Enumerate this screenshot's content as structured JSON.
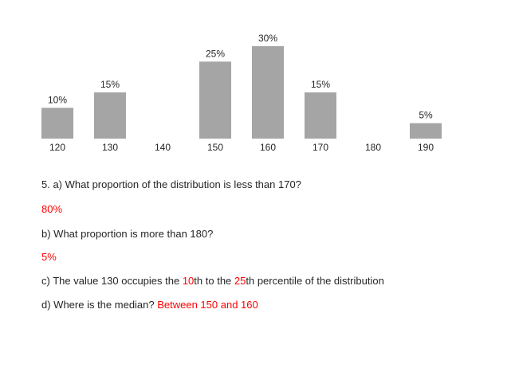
{
  "chart_data": {
    "type": "bar",
    "categories": [
      "120",
      "130",
      "140",
      "150",
      "160",
      "170",
      "180",
      "190"
    ],
    "values": [
      10,
      15,
      0,
      25,
      30,
      15,
      0,
      5
    ],
    "data_labels": [
      "10%",
      "15%",
      "",
      "25%",
      "30%",
      "15%",
      "",
      "5%"
    ],
    "title": "",
    "xlabel": "",
    "ylabel": "",
    "ylim": [
      0,
      30
    ],
    "grid": false,
    "legend": "none",
    "bar_color": "#a5a5a5"
  },
  "questions": {
    "q5a_text": "5. a) What proportion of the distribution is less than 170?",
    "q5a_answer": "80%",
    "q5b_text": "b) What proportion is more than 180?",
    "q5b_answer": "5%",
    "q5c_part1": "c) The value 130 occupies the ",
    "q5c_num1": "10",
    "q5c_part2": "th to the ",
    "q5c_num2": "25",
    "q5c_part3": "th percentile of the distribution",
    "q5d_text": "d) Where is the median? ",
    "q5d_answer": "Between 150 and 160"
  },
  "colors": {
    "answer": "#ff0000",
    "text": "#262626"
  }
}
